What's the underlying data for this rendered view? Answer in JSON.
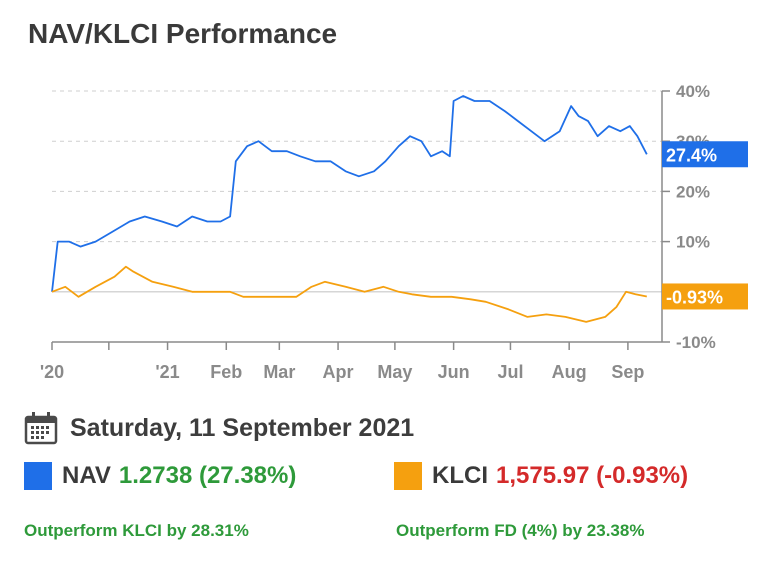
{
  "title": "NAV/KLCI Performance",
  "date": "Saturday, 11 September 2021",
  "legend": {
    "nav": {
      "label": "NAV",
      "value": "1.2738 (27.38%)",
      "swatch_color": "#1f6fe8",
      "value_color": "#2e9a3a"
    },
    "klci": {
      "label": "KLCI",
      "value": "1,575.97 (-0.93%)",
      "swatch_color": "#f5a00f",
      "value_color": "#d42a2a"
    }
  },
  "footer": {
    "left": "Outperform KLCI by 28.31%",
    "right": "Outperform FD (4%) by 23.38%"
  },
  "chart_data": {
    "type": "line",
    "ylim": [
      -10,
      40
    ],
    "y_ticks": [
      "40%",
      "30%",
      "20%",
      "10%",
      "0%",
      "-10%"
    ],
    "x_ticks": [
      "'20",
      "'21",
      "Feb",
      "Mar",
      "Apr",
      "May",
      "Jun",
      "Jul",
      "Aug",
      "Sep"
    ],
    "grid": true,
    "series": [
      {
        "name": "NAV",
        "color": "#1f6fe8",
        "end_label": "27.4%",
        "points": [
          [
            "2020-11-01",
            0
          ],
          [
            "2020-11-04",
            10
          ],
          [
            "2020-11-10",
            10
          ],
          [
            "2020-11-16",
            9
          ],
          [
            "2020-11-24",
            10
          ],
          [
            "2020-12-03",
            12
          ],
          [
            "2020-12-12",
            14
          ],
          [
            "2020-12-20",
            15
          ],
          [
            "2020-12-29",
            14
          ],
          [
            "2021-01-06",
            13
          ],
          [
            "2021-01-14",
            15
          ],
          [
            "2021-01-22",
            14
          ],
          [
            "2021-01-29",
            14
          ],
          [
            "2021-02-03",
            15
          ],
          [
            "2021-02-06",
            26
          ],
          [
            "2021-02-12",
            29
          ],
          [
            "2021-02-18",
            30
          ],
          [
            "2021-02-25",
            28
          ],
          [
            "2021-03-05",
            28
          ],
          [
            "2021-03-12",
            27
          ],
          [
            "2021-03-20",
            26
          ],
          [
            "2021-03-28",
            26
          ],
          [
            "2021-04-05",
            24
          ],
          [
            "2021-04-12",
            23
          ],
          [
            "2021-04-20",
            24
          ],
          [
            "2021-04-26",
            26
          ],
          [
            "2021-05-03",
            29
          ],
          [
            "2021-05-09",
            31
          ],
          [
            "2021-05-15",
            30
          ],
          [
            "2021-05-20",
            27
          ],
          [
            "2021-05-26",
            28
          ],
          [
            "2021-05-30",
            27
          ],
          [
            "2021-06-01",
            38
          ],
          [
            "2021-06-06",
            39
          ],
          [
            "2021-06-12",
            38
          ],
          [
            "2021-06-20",
            38
          ],
          [
            "2021-06-28",
            36
          ],
          [
            "2021-07-05",
            34
          ],
          [
            "2021-07-12",
            32
          ],
          [
            "2021-07-19",
            30
          ],
          [
            "2021-07-27",
            32
          ],
          [
            "2021-08-02",
            37
          ],
          [
            "2021-08-06",
            35
          ],
          [
            "2021-08-11",
            34
          ],
          [
            "2021-08-16",
            31
          ],
          [
            "2021-08-22",
            33
          ],
          [
            "2021-08-28",
            32
          ],
          [
            "2021-09-02",
            33
          ],
          [
            "2021-09-06",
            31
          ],
          [
            "2021-09-11",
            27.4
          ]
        ]
      },
      {
        "name": "KLCI",
        "color": "#f5a00f",
        "end_label": "-0.93%",
        "points": [
          [
            "2020-11-01",
            0
          ],
          [
            "2020-11-08",
            1
          ],
          [
            "2020-11-15",
            -1
          ],
          [
            "2020-11-24",
            1
          ],
          [
            "2020-12-04",
            3
          ],
          [
            "2020-12-10",
            5
          ],
          [
            "2020-12-14",
            4
          ],
          [
            "2020-12-24",
            2
          ],
          [
            "2021-01-04",
            1
          ],
          [
            "2021-01-14",
            0
          ],
          [
            "2021-01-24",
            0
          ],
          [
            "2021-02-03",
            0
          ],
          [
            "2021-02-10",
            -1
          ],
          [
            "2021-02-20",
            -1
          ],
          [
            "2021-03-01",
            -1
          ],
          [
            "2021-03-10",
            -1
          ],
          [
            "2021-03-18",
            1
          ],
          [
            "2021-03-25",
            2
          ],
          [
            "2021-04-05",
            1
          ],
          [
            "2021-04-15",
            0
          ],
          [
            "2021-04-25",
            1
          ],
          [
            "2021-05-03",
            0
          ],
          [
            "2021-05-10",
            -0.5
          ],
          [
            "2021-05-20",
            -1
          ],
          [
            "2021-05-31",
            -1
          ],
          [
            "2021-06-10",
            -1.5
          ],
          [
            "2021-06-18",
            -2
          ],
          [
            "2021-06-30",
            -3.5
          ],
          [
            "2021-07-10",
            -5
          ],
          [
            "2021-07-20",
            -4.5
          ],
          [
            "2021-07-30",
            -5
          ],
          [
            "2021-08-10",
            -6
          ],
          [
            "2021-08-20",
            -5
          ],
          [
            "2021-08-26",
            -3
          ],
          [
            "2021-08-31",
            0
          ],
          [
            "2021-09-05",
            -0.5
          ],
          [
            "2021-09-11",
            -0.93
          ]
        ]
      }
    ]
  }
}
